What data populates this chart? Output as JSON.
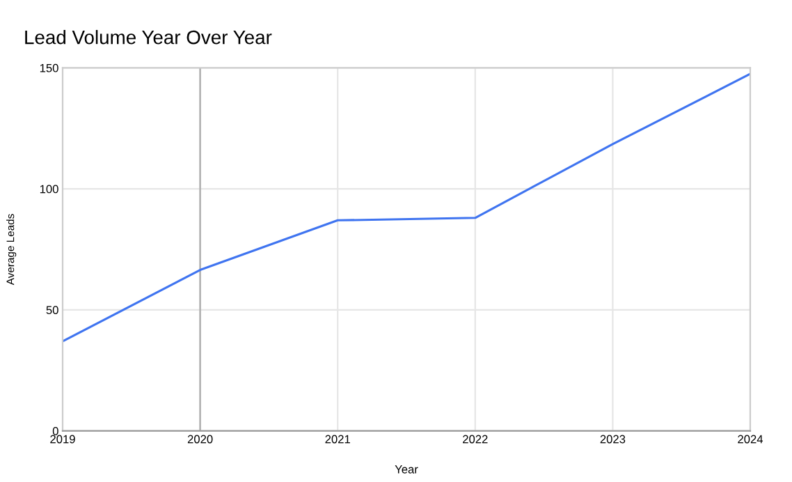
{
  "chart_data": {
    "type": "line",
    "title": "Lead Volume Year Over Year",
    "xlabel": "Year",
    "ylabel": "Average Leads",
    "x": [
      2019,
      2020,
      2021,
      2022,
      2023,
      2024
    ],
    "series": [
      {
        "color": "#3f74f0",
        "values": [
          37,
          66.5,
          87,
          88,
          118.5,
          147.5
        ]
      }
    ],
    "xlim": [
      2019,
      2024
    ],
    "xticks": [
      2019,
      2020,
      2021,
      2022,
      2023,
      2024
    ],
    "ylim": [
      0,
      150
    ],
    "yticks": [
      0,
      50,
      100,
      150
    ],
    "grid": true,
    "ref_lines": [
      {
        "axis": "x",
        "value": 2020,
        "color": "#b0b0b0"
      }
    ]
  }
}
